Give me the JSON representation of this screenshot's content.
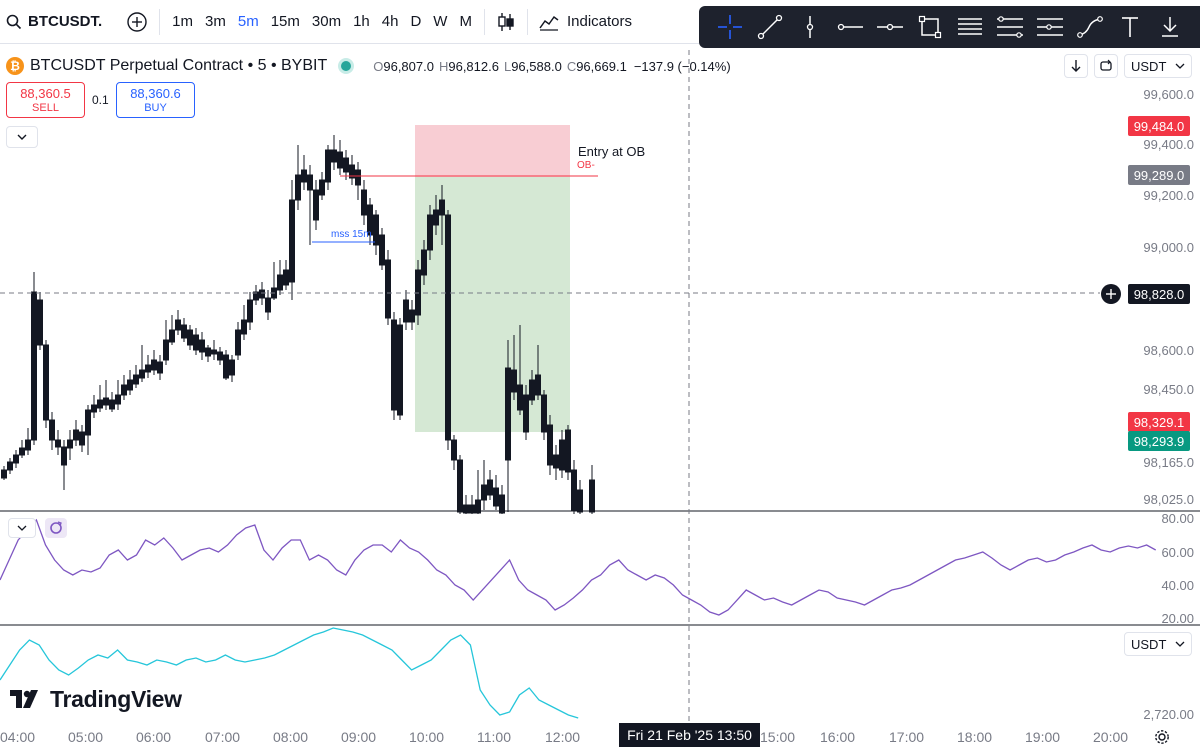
{
  "toolbar": {
    "symbol": "BTCUSDT.",
    "intervals": [
      "1m",
      "3m",
      "5m",
      "15m",
      "30m",
      "1h",
      "4h",
      "D",
      "W",
      "M"
    ],
    "active_interval": "5m",
    "indicators_label": "Indicators"
  },
  "legend": {
    "title": "BTCUSDT Perpetual Contract • 5 • BYBIT",
    "o_key": "O",
    "o_val": "96,807.0",
    "h_key": "H",
    "h_val": "96,812.6",
    "l_key": "L",
    "l_val": "96,588.0",
    "c_key": "C",
    "c_val": "96,669.1",
    "change": "−137.9 (−0.14%)"
  },
  "order": {
    "sell_price": "88,360.5",
    "sell_label": "SELL",
    "spread": "0.1",
    "buy_price": "88,360.6",
    "buy_label": "BUY"
  },
  "currency": "USDT",
  "price_axis": [
    "99,600.0",
    "99,400.0",
    "99,200.0",
    "99,000.0",
    "98,600.0",
    "98,450.0",
    "98,165.0",
    "98,025.0"
  ],
  "price_tags": {
    "stop": "99,484.0",
    "entry": "99,289.0",
    "crosshair": "98,828.0",
    "current_red": "98,329.1",
    "current_green": "98,293.9"
  },
  "rsi_axis": [
    "80.00",
    "60.00",
    "40.00",
    "20.00"
  ],
  "lower_axis": "2,720.00",
  "annotations": {
    "entry_text": "Entry at OB",
    "ob_text": "OB-",
    "mss_text": "mss 15m"
  },
  "time_axis": [
    "04:00",
    "05:00",
    "06:00",
    "07:00",
    "08:00",
    "09:00",
    "10:00",
    "11:00",
    "12:00",
    "15:00",
    "16:00",
    "17:00",
    "18:00",
    "19:00",
    "20:00"
  ],
  "crosshair_date": "Fri 21 Feb '25   13:50",
  "brand": "TradingView",
  "colors": {
    "accent": "#2962ff",
    "sell": "#f23645",
    "buy_green": "#089981",
    "stop_zone": "#f8cdd3",
    "target_zone": "#d5e8d4",
    "rsi": "#7e57c2",
    "lower": "#26c6da",
    "bybit": "#f7931a"
  },
  "icons": [
    "search-icon",
    "add-icon",
    "candles-icon",
    "indicators-icon",
    "crosshair-icon",
    "trendline-icon",
    "vertical-line-icon",
    "horizontal-ray-icon",
    "horizontal-line-icon",
    "rectangle-icon",
    "fib-icon",
    "pitchfork-icon",
    "projection-icon",
    "path-icon",
    "text-icon",
    "download-icon",
    "settings-icon"
  ]
}
